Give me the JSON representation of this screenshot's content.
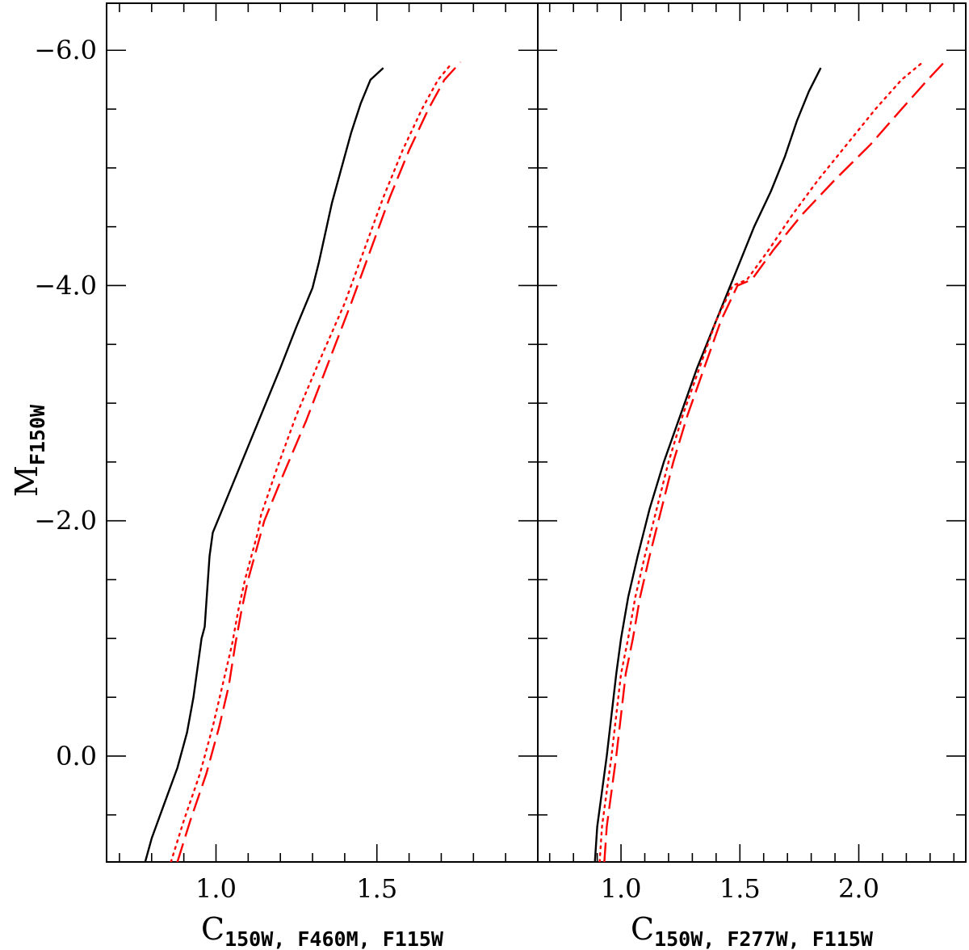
{
  "chart_data": {
    "type": "line",
    "shared_ylabel": {
      "main": "M",
      "sub": "F150W"
    },
    "ylim": [
      0.9,
      -6.4
    ],
    "yticks": [
      0,
      -2,
      -4,
      -6
    ],
    "ytick_labels": [
      "0.0",
      "−2.0",
      "−4.0",
      "−6.0"
    ],
    "yminor_step": 0.5,
    "panels": [
      {
        "xlabel": {
          "main": "C",
          "sub": "150W, F460M, F115W"
        },
        "xlim": [
          0.66,
          2.0
        ],
        "xticks": [
          1.0,
          1.5
        ],
        "xtick_labels": [
          "1.0",
          "1.5"
        ],
        "xminor_step": 0.1,
        "series": [
          {
            "style": "solid",
            "color": "#000000",
            "x": [
              0.78,
              0.8,
              0.84,
              0.88,
              0.91,
              0.93,
              0.945,
              0.955,
              0.96,
              0.965,
              0.97,
              0.975,
              0.98,
              0.99,
              1.02,
              1.08,
              1.14,
              1.2,
              1.25,
              1.3,
              1.32,
              1.34,
              1.36,
              1.39,
              1.42,
              1.45,
              1.48,
              1.52
            ],
            "y": [
              0.9,
              0.7,
              0.4,
              0.1,
              -0.2,
              -0.5,
              -0.8,
              -1.0,
              -1.05,
              -1.1,
              -1.3,
              -1.5,
              -1.7,
              -1.9,
              -2.1,
              -2.5,
              -2.9,
              -3.3,
              -3.65,
              -3.98,
              -4.2,
              -4.45,
              -4.7,
              -5.0,
              -5.3,
              -5.55,
              -5.75,
              -5.85
            ]
          },
          {
            "style": "dotted",
            "color": "#ff0000",
            "x": [
              0.86,
              0.9,
              0.95,
              0.99,
              1.02,
              1.05,
              1.07,
              1.09,
              1.11,
              1.13,
              1.14,
              1.19,
              1.25,
              1.32,
              1.4,
              1.46,
              1.52,
              1.58,
              1.64,
              1.69,
              1.73
            ],
            "y": [
              0.9,
              0.55,
              0.15,
              -0.25,
              -0.6,
              -0.95,
              -1.25,
              -1.5,
              -1.7,
              -1.9,
              -2.05,
              -2.45,
              -2.9,
              -3.35,
              -3.85,
              -4.3,
              -4.75,
              -5.15,
              -5.5,
              -5.75,
              -5.88
            ]
          },
          {
            "style": "dashed",
            "color": "#ff0000",
            "x": [
              0.88,
              0.92,
              0.97,
              1.01,
              1.04,
              1.06,
              1.08,
              1.1,
              1.12,
              1.14,
              1.15,
              1.21,
              1.28,
              1.35,
              1.42,
              1.48,
              1.54,
              1.6,
              1.66,
              1.71,
              1.76
            ],
            "y": [
              0.9,
              0.55,
              0.15,
              -0.25,
              -0.6,
              -0.95,
              -1.25,
              -1.5,
              -1.7,
              -1.9,
              -2.0,
              -2.4,
              -2.85,
              -3.35,
              -3.85,
              -4.3,
              -4.75,
              -5.15,
              -5.5,
              -5.75,
              -5.9
            ]
          }
        ]
      },
      {
        "xlabel": {
          "main": "C",
          "sub": "150W, F277W, F115W"
        },
        "xlim": [
          0.65,
          2.45
        ],
        "xticks": [
          1.0,
          1.5,
          2.0
        ],
        "xtick_labels": [
          "1.0",
          "1.5",
          "2.0"
        ],
        "xminor_step": 0.1,
        "series": [
          {
            "style": "solid",
            "color": "#000000",
            "x": [
              0.89,
              0.9,
              0.92,
              0.94,
              0.96,
              0.98,
              1.0,
              1.03,
              1.07,
              1.12,
              1.18,
              1.25,
              1.32,
              1.4,
              1.48,
              1.56,
              1.63,
              1.69,
              1.74,
              1.79,
              1.84
            ],
            "y": [
              0.9,
              0.6,
              0.3,
              0.0,
              -0.35,
              -0.7,
              -1.0,
              -1.35,
              -1.7,
              -2.1,
              -2.5,
              -2.9,
              -3.3,
              -3.7,
              -4.1,
              -4.5,
              -4.8,
              -5.1,
              -5.4,
              -5.65,
              -5.85
            ]
          },
          {
            "style": "dotted",
            "color": "#ff0000",
            "x": [
              0.91,
              0.92,
              0.94,
              0.96,
              0.98,
              1.0,
              1.03,
              1.06,
              1.1,
              1.15,
              1.2,
              1.26,
              1.33,
              1.4,
              1.47,
              1.53,
              1.62,
              1.72,
              1.83,
              1.95,
              2.07,
              2.18,
              2.27
            ],
            "y": [
              0.9,
              0.6,
              0.3,
              0.0,
              -0.35,
              -0.7,
              -1.0,
              -1.35,
              -1.7,
              -2.1,
              -2.5,
              -2.9,
              -3.3,
              -3.7,
              -4.0,
              -4.05,
              -4.3,
              -4.6,
              -4.9,
              -5.2,
              -5.5,
              -5.75,
              -5.9
            ]
          },
          {
            "style": "dashed",
            "color": "#ff0000",
            "x": [
              0.93,
              0.94,
              0.96,
              0.98,
              1.0,
              1.02,
              1.05,
              1.08,
              1.12,
              1.17,
              1.22,
              1.28,
              1.35,
              1.42,
              1.49,
              1.55,
              1.64,
              1.76,
              1.9,
              2.05,
              2.18,
              2.29,
              2.36
            ],
            "y": [
              0.9,
              0.6,
              0.3,
              0.0,
              -0.35,
              -0.7,
              -1.0,
              -1.35,
              -1.7,
              -2.1,
              -2.5,
              -2.9,
              -3.3,
              -3.7,
              -4.0,
              -4.05,
              -4.3,
              -4.6,
              -4.9,
              -5.2,
              -5.5,
              -5.75,
              -5.9
            ]
          }
        ]
      }
    ]
  }
}
